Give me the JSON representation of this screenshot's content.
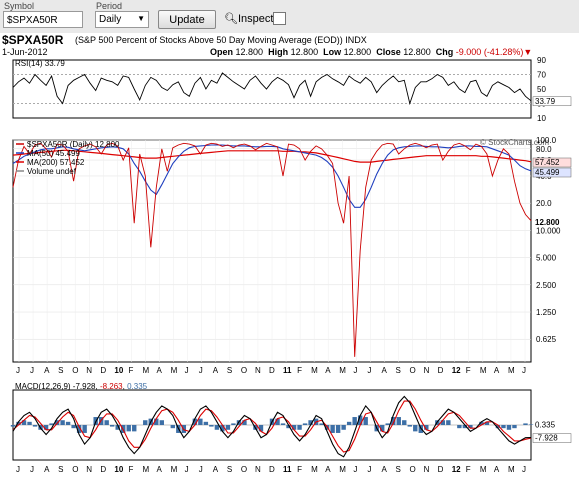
{
  "toolbar": {
    "symbol_label": "Symbol",
    "symbol_value": "$SPXA50R",
    "period_label": "Period",
    "period_value": "Daily",
    "update_label": "Update",
    "inspect_label": "Inspect"
  },
  "header": {
    "symbol": "$SPXA50R",
    "description": "(S&P 500 Percent of Stocks Above 50 Day Moving Average (EOD))  INDX",
    "date": "1-Jun-2012",
    "open_label": "Open",
    "open": "12.800",
    "high_label": "High",
    "high": "12.800",
    "low_label": "Low",
    "low": "12.800",
    "close_label": "Close",
    "close": "12.800",
    "chg_label": "Chg",
    "chg": "-9.000 (-41.28%)",
    "brand": "© StockCharts.com"
  },
  "colors": {
    "price": "#cc0000",
    "ma50": "#1f3fbf",
    "ma200": "#dd0000",
    "rsi": "#000000",
    "macd": "#000000",
    "signal": "#dd0000",
    "hist": "#3d6fa6"
  },
  "chart_data": [
    {
      "type": "line",
      "name": "rsi-panel",
      "title": "RSI(14) 33.79",
      "last_label": "33.79",
      "y_ticks": [
        "90",
        "70",
        "50",
        "30",
        "10"
      ],
      "ylim": [
        10,
        90
      ],
      "levels": [
        70,
        30
      ],
      "values": [
        52,
        60,
        65,
        58,
        70,
        62,
        55,
        68,
        40,
        30,
        55,
        62,
        66,
        70,
        58,
        48,
        65,
        62,
        60,
        55,
        68,
        66,
        50,
        35,
        55,
        66,
        62,
        52,
        48,
        56,
        60,
        45,
        40,
        58,
        66,
        50,
        62,
        58,
        72,
        66,
        60,
        55,
        50,
        62,
        68,
        58,
        50,
        60,
        66,
        62,
        56,
        38,
        55,
        62,
        40,
        60,
        66,
        70,
        64,
        60,
        55,
        68,
        62,
        58,
        66,
        60,
        45,
        55,
        62,
        68,
        60,
        62,
        30,
        52,
        60,
        60,
        64,
        70,
        66,
        55,
        60,
        50,
        45,
        60,
        62,
        45,
        40,
        55,
        60,
        56,
        52,
        45,
        50,
        40,
        33.79
      ]
    },
    {
      "type": "line",
      "name": "price-panel",
      "title": "$SPXA50R (Daily) 12.800",
      "scale": "log",
      "ylim": [
        0.35,
        100
      ],
      "y_ticks": [
        "100.0",
        "80.0",
        "60.0",
        "40.0",
        "20.0",
        "10.000",
        "5.000",
        "2.500",
        "1.250",
        "0.625"
      ],
      "x_ticks": [
        "J",
        "J",
        "A",
        "S",
        "O",
        "N",
        "D",
        "10",
        "F",
        "M",
        "A",
        "M",
        "J",
        "J",
        "A",
        "S",
        "O",
        "N",
        "D",
        "11",
        "F",
        "M",
        "A",
        "M",
        "J",
        "J",
        "A",
        "S",
        "O",
        "N",
        "D",
        "12",
        "F",
        "M",
        "A",
        "M",
        "J"
      ],
      "legend": [
        "$SPXA50R (Daily) 12.800",
        "MA(50) 45.499",
        "MA(200) 57.452",
        "Volume undef"
      ],
      "labels": {
        "ma200_last": "57.452",
        "ma50_last": "45.499",
        "price_last": "12.800"
      },
      "series": [
        {
          "name": "$SPXA50R (Daily) 12.800",
          "values": [
            30,
            60,
            85,
            70,
            88,
            92,
            80,
            65,
            90,
            88,
            75,
            35,
            80,
            86,
            90,
            84,
            70,
            88,
            92,
            86,
            60,
            82,
            12,
            70,
            40,
            6.5,
            30,
            80,
            45,
            82,
            88,
            92,
            90,
            86,
            70,
            88,
            92,
            90,
            85,
            88,
            82,
            88,
            90,
            86,
            78,
            85,
            92,
            88,
            84,
            40,
            90,
            88,
            80,
            60,
            75,
            86,
            80,
            68,
            55,
            20,
            12,
            40,
            0.4,
            6,
            30,
            60,
            75,
            88,
            92,
            90,
            70,
            80,
            88,
            92,
            88,
            82,
            88,
            90,
            60,
            75,
            88,
            92,
            86,
            78,
            90,
            85,
            70,
            40,
            60,
            80,
            70,
            35,
            20,
            15,
            12.8
          ]
        },
        {
          "name": "MA(50) 45.499",
          "values": [
            55,
            60,
            66,
            70,
            74,
            78,
            80,
            80,
            82,
            84,
            83,
            80,
            78,
            76,
            78,
            80,
            82,
            83,
            84,
            83,
            80,
            70,
            55,
            45,
            35,
            28,
            25,
            32,
            42,
            55,
            65,
            75,
            82,
            85,
            86,
            87,
            88,
            88,
            88,
            87,
            86,
            86,
            86,
            85,
            84,
            84,
            85,
            85,
            84,
            80,
            78,
            76,
            74,
            72,
            70,
            68,
            64,
            58,
            50,
            40,
            30,
            22,
            18,
            18,
            22,
            30,
            42,
            55,
            68,
            78,
            82,
            84,
            85,
            86,
            86,
            85,
            84,
            84,
            83,
            82,
            83,
            85,
            86,
            86,
            85,
            85,
            84,
            80,
            76,
            72,
            68,
            60,
            52,
            48,
            45.5
          ]
        },
        {
          "name": "MA(200) 57.452",
          "values": [
            68,
            69,
            70,
            71,
            72,
            73,
            74,
            75,
            76,
            77,
            77,
            76,
            75,
            74,
            73,
            72,
            71,
            70,
            69,
            68,
            67,
            66,
            65,
            64,
            63,
            63,
            63,
            64,
            65,
            66,
            67,
            68,
            69,
            70,
            71,
            72,
            73,
            74,
            75,
            76,
            76,
            76,
            76,
            76,
            76,
            76,
            76,
            76,
            76,
            75,
            75,
            75,
            74,
            74,
            73,
            72,
            70,
            68,
            66,
            64,
            62,
            60,
            58,
            57,
            57,
            57,
            58,
            59,
            60,
            61,
            62,
            63,
            64,
            65,
            66,
            67,
            67,
            67,
            67,
            67,
            67,
            67,
            67,
            67,
            67,
            66,
            66,
            65,
            64,
            63,
            62,
            61,
            60,
            59,
            57.45
          ]
        }
      ]
    },
    {
      "type": "line",
      "name": "macd-panel",
      "title": "MACD(12,26,9) -7.928, -8.263, 0.335",
      "title_parts": {
        "prefix": "MACD(12,26,9) ",
        "macd": "-7.928",
        "signal": "-8.263",
        "hist": "0.335"
      },
      "labels": {
        "hist_last": "0.335",
        "macd_last": "-7.928"
      },
      "ylim": [
        -22,
        22
      ],
      "series": [
        {
          "name": "MACD",
          "values": [
            -4,
            2,
            6,
            8,
            4,
            -2,
            -6,
            -2,
            4,
            8,
            10,
            4,
            -6,
            -12,
            -8,
            2,
            8,
            10,
            6,
            0,
            -8,
            -14,
            -18,
            -14,
            -6,
            2,
            8,
            12,
            10,
            6,
            -2,
            -8,
            -4,
            4,
            10,
            12,
            8,
            2,
            -4,
            -8,
            -4,
            2,
            6,
            4,
            -2,
            -8,
            -6,
            2,
            8,
            6,
            0,
            -6,
            -10,
            -6,
            0,
            6,
            4,
            -4,
            -12,
            -18,
            -20,
            -14,
            -4,
            6,
            12,
            8,
            -2,
            -8,
            -4,
            6,
            14,
            18,
            14,
            6,
            -2,
            -6,
            -4,
            2,
            6,
            10,
            8,
            4,
            0,
            -4,
            -2,
            2,
            4,
            2,
            -2,
            -6,
            -10,
            -12,
            -10,
            -8,
            -7.93
          ]
        },
        {
          "name": "Signal",
          "values": [
            -3,
            0,
            3,
            6,
            5,
            1,
            -3,
            -3,
            1,
            5,
            8,
            6,
            -1,
            -7,
            -8,
            -3,
            3,
            7,
            7,
            3,
            -3,
            -10,
            -14,
            -14,
            -9,
            -2,
            4,
            9,
            10,
            8,
            3,
            -3,
            -4,
            0,
            6,
            10,
            9,
            5,
            0,
            -5,
            -5,
            -1,
            3,
            4,
            1,
            -4,
            -6,
            -2,
            4,
            5,
            2,
            -3,
            -7,
            -7,
            -3,
            2,
            3,
            -1,
            -7,
            -13,
            -17,
            -16,
            -9,
            0,
            7,
            8,
            2,
            -4,
            -5,
            1,
            9,
            15,
            15,
            10,
            3,
            -3,
            -4,
            -1,
            3,
            7,
            8,
            6,
            2,
            -2,
            -2,
            0,
            2,
            2,
            0,
            -4,
            -7,
            -10,
            -10,
            -9,
            -8.26
          ]
        }
      ]
    }
  ]
}
